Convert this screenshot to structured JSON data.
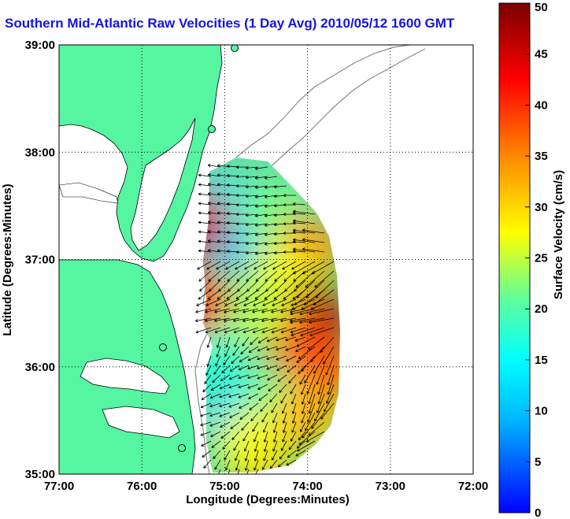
{
  "title": "Southern Mid-Atlantic Raw Velocities (1 Day Avg) 2010/05/12 1600 GMT",
  "chart_data": {
    "type": "heatmap",
    "title": "Southern Mid-Atlantic Raw Velocities (1 Day Avg) 2010/05/12 1600 GMT",
    "xlabel": "Longitude (Degrees:Minutes)",
    "ylabel": "Latitude (Degrees:Minutes)",
    "x_ticks": [
      "77:00",
      "76:00",
      "75:00",
      "74:00",
      "73:00",
      "72:00"
    ],
    "y_ticks": [
      "39:00",
      "38:00",
      "37:00",
      "36:00",
      "35:00"
    ],
    "xlim": [
      -77,
      -72
    ],
    "ylim": [
      35,
      39
    ],
    "grid": true,
    "colorbar": {
      "label": "Surface Velocity (cm/s)",
      "range": [
        0,
        50
      ],
      "ticks": [
        0,
        5,
        10,
        15,
        20,
        25,
        30,
        35,
        40,
        45,
        50
      ]
    },
    "colors": {
      "land": "#55f5a2",
      "title": "#1414e0"
    },
    "regions": [
      {
        "lon": -74.85,
        "lat": 37.2,
        "speed": 10
      },
      {
        "lon": -75.15,
        "lat": 37.5,
        "speed": 13
      },
      {
        "lon": -74.4,
        "lat": 37.4,
        "speed": 22
      },
      {
        "lon": -74.0,
        "lat": 37.1,
        "speed": 35
      },
      {
        "lon": -74.3,
        "lat": 36.85,
        "speed": 27
      },
      {
        "lon": -73.9,
        "lat": 36.45,
        "speed": 47
      },
      {
        "lon": -74.2,
        "lat": 36.3,
        "speed": 40
      },
      {
        "lon": -74.6,
        "lat": 36.5,
        "speed": 25
      },
      {
        "lon": -75.1,
        "lat": 36.6,
        "speed": 22
      },
      {
        "lon": -75.1,
        "lat": 36.05,
        "speed": 18
      },
      {
        "lon": -74.85,
        "lat": 35.55,
        "speed": 12
      },
      {
        "lon": -74.35,
        "lat": 35.7,
        "speed": 22
      },
      {
        "lon": -74.6,
        "lat": 35.15,
        "speed": 33
      },
      {
        "lon": -74.7,
        "lat": 35.3,
        "speed": 27
      },
      {
        "lon": -75.35,
        "lat": 37.35,
        "speed": 45
      },
      {
        "lon": -75.35,
        "lat": 36.6,
        "speed": 42
      },
      {
        "lon": -73.8,
        "lat": 35.95,
        "speed": 38
      },
      {
        "lon": -74.0,
        "lat": 35.55,
        "speed": 32
      }
    ]
  }
}
